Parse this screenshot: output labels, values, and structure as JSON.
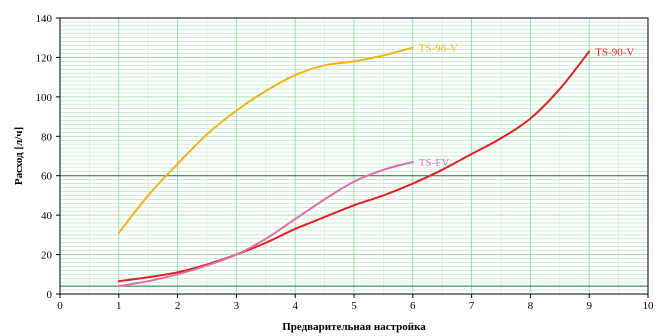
{
  "chart_data": {
    "type": "line",
    "title": "",
    "xlabel": "Предварительная настройка",
    "ylabel": "Расход [л/ч]",
    "xlim": [
      0,
      10
    ],
    "ylim": [
      0,
      140
    ],
    "xticks": [
      0,
      1,
      2,
      3,
      4,
      5,
      6,
      7,
      8,
      9,
      10
    ],
    "yticks": [
      0,
      20,
      40,
      60,
      80,
      100,
      120,
      140
    ],
    "grid": true,
    "reference_lines_y": [
      4,
      60
    ],
    "series": [
      {
        "name": "TS-98-V",
        "color": "#f2b21b",
        "x": [
          1,
          1.5,
          2,
          2.5,
          3,
          3.5,
          4,
          4.5,
          5,
          5.5,
          6
        ],
        "y": [
          31,
          50,
          66,
          81,
          93,
          103,
          111,
          116,
          118,
          121,
          125
        ]
      },
      {
        "name": "TS-90-V",
        "color": "#d92323",
        "x": [
          1,
          1.5,
          2,
          2.5,
          3,
          3.5,
          4,
          4.5,
          5,
          5.5,
          6,
          6.5,
          7,
          7.5,
          8,
          8.5,
          9
        ],
        "y": [
          6.5,
          8.5,
          11,
          15,
          20,
          26,
          33,
          39,
          45,
          50,
          56,
          63,
          71,
          79,
          89,
          104,
          123
        ]
      },
      {
        "name": "TS-FV",
        "color": "#de6fa6",
        "x": [
          1,
          1.5,
          2,
          2.5,
          3,
          3.5,
          4,
          4.5,
          5,
          5.5,
          6
        ],
        "y": [
          4,
          6.5,
          10,
          14.5,
          20,
          28,
          38,
          48,
          57,
          63,
          67
        ]
      }
    ]
  }
}
